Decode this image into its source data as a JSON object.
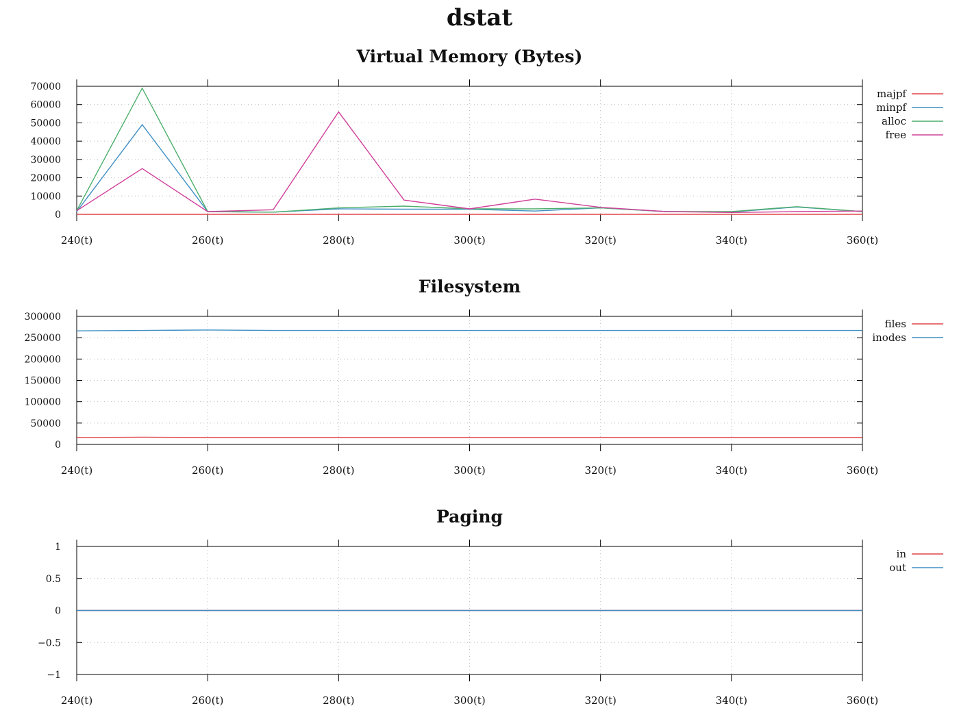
{
  "title": "dstat",
  "chart_data": [
    {
      "type": "line",
      "title": "Virtual Memory (Bytes)",
      "x": [
        240,
        250,
        260,
        270,
        280,
        290,
        300,
        310,
        320,
        330,
        340,
        350,
        360
      ],
      "x_ticks": [
        240,
        260,
        280,
        300,
        320,
        340,
        360
      ],
      "x_tick_labels": [
        "240(t)",
        "260(t)",
        "280(t)",
        "300(t)",
        "320(t)",
        "340(t)",
        "360(t)"
      ],
      "xlim": [
        240,
        360
      ],
      "ylim": [
        0,
        70000
      ],
      "y_ticks": [
        0,
        10000,
        20000,
        30000,
        40000,
        50000,
        60000,
        70000
      ],
      "y_tick_labels": [
        "0",
        "10000",
        "20000",
        "30000",
        "40000",
        "50000",
        "60000",
        "70000"
      ],
      "grid": true,
      "legend": "right",
      "series": [
        {
          "name": "majpf",
          "color": "#e0454a",
          "values": [
            0,
            0,
            0,
            0,
            0,
            0,
            0,
            0,
            0,
            0,
            0,
            0,
            0
          ]
        },
        {
          "name": "minpf",
          "color": "#3f8fc3",
          "values": [
            1500,
            49000,
            1500,
            1200,
            3000,
            2800,
            2800,
            1800,
            3500,
            1500,
            1300,
            4000,
            1500
          ]
        },
        {
          "name": "alloc",
          "color": "#4cae6a",
          "values": [
            2000,
            69000,
            1500,
            1200,
            3500,
            4500,
            3000,
            3000,
            3500,
            1500,
            1500,
            4200,
            1500
          ]
        },
        {
          "name": "free",
          "color": "#d0409b",
          "values": [
            2000,
            25000,
            1500,
            2500,
            56000,
            7800,
            3000,
            8300,
            3800,
            1500,
            1000,
            1500,
            1800
          ]
        }
      ]
    },
    {
      "type": "line",
      "title": "Filesystem",
      "x": [
        240,
        250,
        260,
        270,
        280,
        290,
        300,
        310,
        320,
        330,
        340,
        350,
        360
      ],
      "x_ticks": [
        240,
        260,
        280,
        300,
        320,
        340,
        360
      ],
      "x_tick_labels": [
        "240(t)",
        "260(t)",
        "280(t)",
        "300(t)",
        "320(t)",
        "340(t)",
        "360(t)"
      ],
      "xlim": [
        240,
        360
      ],
      "ylim": [
        0,
        300000
      ],
      "y_ticks": [
        0,
        50000,
        100000,
        150000,
        200000,
        250000,
        300000
      ],
      "y_tick_labels": [
        "0",
        "50000",
        "100000",
        "150000",
        "200000",
        "250000",
        "300000"
      ],
      "grid": true,
      "legend": "right",
      "series": [
        {
          "name": "files",
          "color": "#e0454a",
          "values": [
            16000,
            17000,
            16000,
            16000,
            16000,
            16000,
            16000,
            16000,
            16000,
            16000,
            16000,
            16000,
            16000
          ]
        },
        {
          "name": "inodes",
          "color": "#3f8fc3",
          "values": [
            266000,
            267000,
            268000,
            267000,
            267000,
            267000,
            267000,
            267000,
            267000,
            267000,
            267000,
            267000,
            267000
          ]
        }
      ]
    },
    {
      "type": "line",
      "title": "Paging",
      "x": [
        240,
        250,
        260,
        270,
        280,
        290,
        300,
        310,
        320,
        330,
        340,
        350,
        360
      ],
      "x_ticks": [
        240,
        260,
        280,
        300,
        320,
        340,
        360
      ],
      "x_tick_labels": [
        "240(t)",
        "260(t)",
        "280(t)",
        "300(t)",
        "320(t)",
        "340(t)",
        "360(t)"
      ],
      "xlim": [
        240,
        360
      ],
      "ylim": [
        -1,
        1
      ],
      "y_ticks": [
        -1,
        -0.5,
        0,
        0.5,
        1
      ],
      "y_tick_labels": [
        "−1",
        "−0.5",
        "0",
        "0.5",
        "1"
      ],
      "grid": true,
      "legend": "right",
      "series": [
        {
          "name": "in",
          "color": "#e0454a",
          "values": [
            0,
            0,
            0,
            0,
            0,
            0,
            0,
            0,
            0,
            0,
            0,
            0,
            0
          ]
        },
        {
          "name": "out",
          "color": "#3f8fc3",
          "values": [
            0,
            0,
            0,
            0,
            0,
            0,
            0,
            0,
            0,
            0,
            0,
            0,
            0
          ]
        }
      ]
    }
  ]
}
